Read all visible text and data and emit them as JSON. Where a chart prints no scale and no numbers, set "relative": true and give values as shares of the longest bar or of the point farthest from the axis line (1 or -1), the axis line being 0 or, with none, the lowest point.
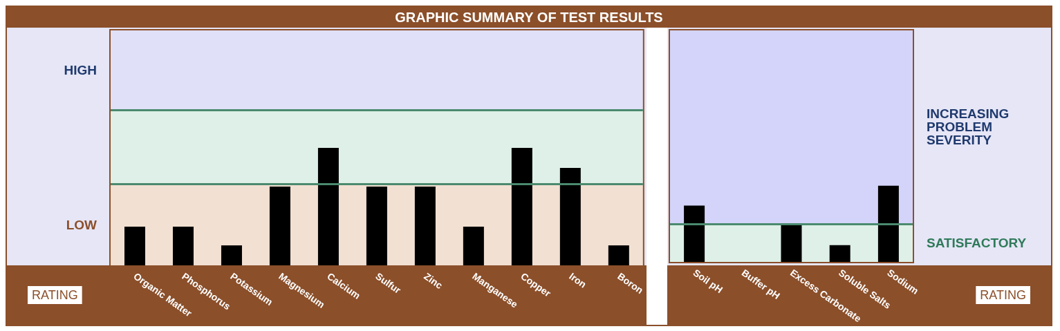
{
  "chart_data": [
    {
      "type": "bar",
      "title": "GRAPHIC SUMMARY OF TEST RESULTS",
      "relative": true,
      "categories": [
        "Organic Matter",
        "Phosphorus",
        "Potassium",
        "Magnesium",
        "Calcium",
        "Sulfur",
        "Zinc",
        "Manganese",
        "Copper",
        "Iron",
        "Boron"
      ],
      "values": [
        0.33,
        0.33,
        0.17,
        0.67,
        1,
        0.67,
        0.67,
        0.33,
        1,
        0.83,
        0.17
      ],
      "color": "#000000",
      "bands": [
        {
          "axis": "y",
          "from": 0,
          "to": 0.69,
          "label": "LOW",
          "color": "#f2e0d2"
        },
        {
          "axis": "y",
          "from": 0.69,
          "to": 1.32,
          "color": "#dff0e8"
        },
        {
          "axis": "y",
          "from": 1.32,
          "to": 2.0,
          "label": "HIGH",
          "color": "#e0e0f8"
        }
      ],
      "ref_lines": [
        {
          "axis": "y",
          "value": 0.69,
          "color": "#4a8a6e"
        },
        {
          "axis": "y",
          "value": 1.32,
          "color": "#4a8a6e"
        }
      ],
      "annotations": [
        "RATING"
      ],
      "grid": false
    },
    {
      "type": "bar",
      "relative": true,
      "categories": [
        "Soil pH",
        "Buffer pH",
        "Excess Carbonate",
        "Soluble Salts",
        "Sodium"
      ],
      "values": [
        0.74,
        0,
        0.49,
        0.22,
        1
      ],
      "color": "#000000",
      "bands": [
        {
          "axis": "y",
          "from": 0,
          "to": 0.5,
          "label": "SATISFACTORY",
          "color": "#dff0e8"
        },
        {
          "axis": "y",
          "from": 0.5,
          "to": 3.04,
          "label": "INCREASING PROBLEM SEVERITY",
          "color": "#d4d4fa"
        }
      ],
      "ref_lines": [
        {
          "axis": "y",
          "value": 0.5,
          "color": "#4a8a6e"
        }
      ],
      "annotations": [
        "RATING"
      ],
      "grid": false
    }
  ]
}
